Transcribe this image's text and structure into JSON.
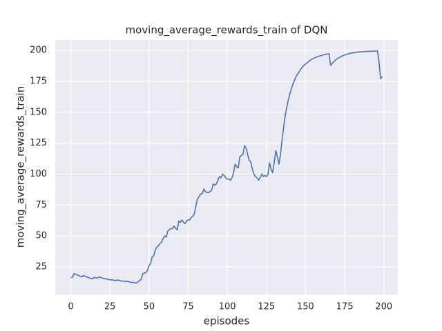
{
  "chart_data": {
    "type": "line",
    "title": "moving_average_rewards_train of DQN",
    "xlabel": "episodes",
    "ylabel": "moving_average_rewards_train",
    "x": [
      0,
      1,
      2,
      3,
      4,
      5,
      6,
      7,
      8,
      9,
      10,
      11,
      12,
      13,
      14,
      15,
      16,
      17,
      18,
      19,
      20,
      21,
      22,
      23,
      24,
      25,
      26,
      27,
      28,
      29,
      30,
      31,
      32,
      33,
      34,
      35,
      36,
      37,
      38,
      39,
      40,
      41,
      42,
      43,
      44,
      45,
      46,
      47,
      48,
      49,
      50,
      51,
      52,
      53,
      54,
      55,
      56,
      57,
      58,
      59,
      60,
      61,
      62,
      63,
      64,
      65,
      66,
      67,
      68,
      69,
      70,
      71,
      72,
      73,
      74,
      75,
      76,
      77,
      78,
      79,
      80,
      81,
      82,
      83,
      84,
      85,
      86,
      87,
      88,
      89,
      90,
      91,
      92,
      93,
      94,
      95,
      96,
      97,
      98,
      99,
      100,
      101,
      102,
      103,
      104,
      105,
      106,
      107,
      108,
      109,
      110,
      111,
      112,
      113,
      114,
      115,
      116,
      117,
      118,
      119,
      120,
      121,
      122,
      123,
      124,
      125,
      126,
      127,
      128,
      129,
      130,
      131,
      132,
      133,
      134,
      135,
      136,
      137,
      138,
      139,
      140,
      141,
      142,
      143,
      144,
      145,
      146,
      147,
      148,
      149,
      150,
      151,
      152,
      153,
      154,
      155,
      156,
      157,
      158,
      159,
      160,
      161,
      162,
      163,
      164,
      165,
      166,
      167,
      168,
      169,
      170,
      171,
      172,
      173,
      174,
      175,
      176,
      177,
      178,
      179,
      180,
      181,
      182,
      183,
      184,
      185,
      186,
      187,
      188,
      189,
      190,
      191,
      192,
      193,
      194,
      195,
      196,
      197,
      198,
      199
    ],
    "series": [
      {
        "name": "moving_average_rewards_train",
        "color": "#4c72b0",
        "values": [
          16.5,
          16.5,
          19.5,
          19,
          18.5,
          18,
          17.5,
          17,
          18,
          17.5,
          17,
          16.5,
          16,
          15.5,
          15.5,
          16.5,
          16,
          16,
          17,
          16.5,
          16,
          15.5,
          15.5,
          15,
          15,
          14.5,
          14.5,
          14.5,
          14,
          14,
          14.5,
          14,
          13.5,
          13.5,
          13.5,
          13,
          13.5,
          13,
          12.5,
          12.5,
          12.5,
          12,
          12,
          13,
          14,
          15,
          19.5,
          20,
          20.5,
          22,
          26,
          28,
          33,
          34,
          39,
          41,
          42,
          44,
          45,
          48,
          50,
          49,
          54,
          55,
          56,
          56,
          58,
          56,
          55,
          62,
          61,
          63,
          61,
          60,
          62,
          63,
          63,
          65,
          66,
          68,
          75,
          80,
          82,
          84,
          84,
          88,
          86,
          85,
          85,
          86,
          87,
          92,
          91,
          92,
          95,
          98,
          97,
          100,
          99,
          97,
          96,
          96,
          95,
          97,
          101,
          108,
          106,
          105,
          114,
          115,
          116,
          123,
          121,
          116,
          111,
          110,
          104,
          100,
          98,
          97,
          95,
          97,
          100,
          98,
          99,
          98,
          100,
          109,
          104,
          101,
          110,
          119,
          114,
          108,
          116,
          128,
          138,
          147,
          154,
          160,
          165,
          169,
          173,
          176,
          179,
          181,
          183,
          185,
          186.5,
          188,
          189,
          190,
          191,
          192,
          192.8,
          193.5,
          194,
          194.6,
          195,
          195.5,
          195.8,
          196.2,
          196.5,
          196.8,
          197,
          197.2,
          188,
          189.5,
          190.8,
          192,
          193,
          193.8,
          194.5,
          195.2,
          195.8,
          196.3,
          196.7,
          197.1,
          197.4,
          197.7,
          198,
          198.2,
          198.4,
          198.6,
          198.7,
          198.8,
          198.9,
          199,
          199.1,
          199.2,
          199.3,
          199.3,
          199.4,
          199.4,
          199.5,
          199.5,
          199.5,
          190,
          177,
          179
        ]
      }
    ],
    "xlim": [
      -9.95,
      208.95
    ],
    "ylim": [
      2.7,
      208.4
    ],
    "xticks": [
      0,
      25,
      50,
      75,
      100,
      125,
      150,
      175,
      200
    ],
    "yticks": [
      25,
      50,
      75,
      100,
      125,
      150,
      175,
      200
    ],
    "grid": true
  }
}
